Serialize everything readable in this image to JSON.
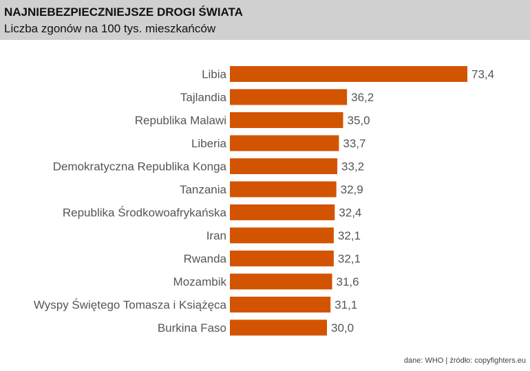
{
  "header": {
    "title": "NAJNIEBEZPIECZNIEJSZE DROGI ŚWIATA",
    "subtitle": "Liczba zgonów na 100 tys. mieszkańców"
  },
  "footer": {
    "source": "dane: WHO | źródło: copyfighters.eu"
  },
  "colors": {
    "bar": "#d35400",
    "label": "#555555",
    "header_bg": "#d0d0d0"
  },
  "chart_data": {
    "type": "bar",
    "orientation": "horizontal",
    "categories": [
      "Libia",
      "Tajlandia",
      "Republika Malawi",
      "Liberia",
      "Demokratyczna Republika Konga",
      "Tanzania",
      "Republika Środkowoafrykańska",
      "Iran",
      "Rwanda",
      "Mozambik",
      "Wyspy Świętego Tomasza i Książęca",
      "Burkina Faso"
    ],
    "values": [
      73.4,
      36.2,
      35.0,
      33.7,
      33.2,
      32.9,
      32.4,
      32.1,
      32.1,
      31.6,
      31.1,
      30.0
    ],
    "value_labels": [
      "73,4",
      "36,2",
      "35,0",
      "33,7",
      "33,2",
      "32,9",
      "32,4",
      "32,1",
      "32,1",
      "31,6",
      "31,1",
      "30,0"
    ],
    "xlim": [
      0,
      73.4
    ],
    "grid": false,
    "legend": "none"
  }
}
